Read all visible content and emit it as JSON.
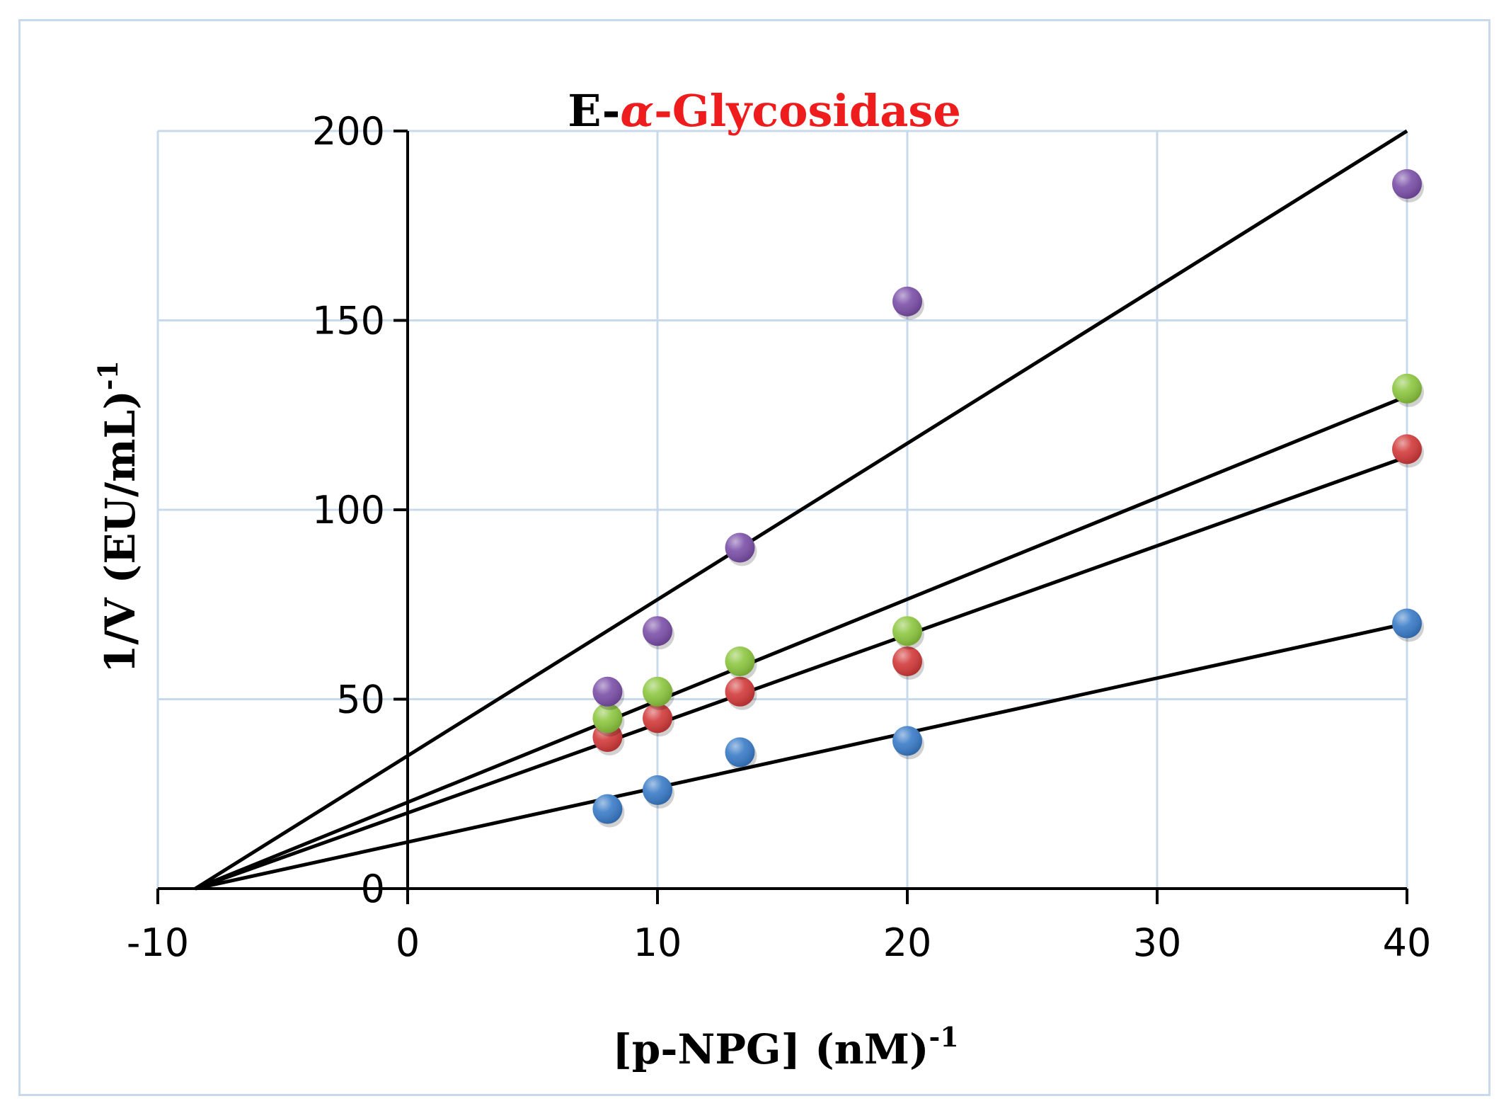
{
  "chart_data": {
    "type": "scatter",
    "title": {
      "prefix": "E-",
      "greek": "α",
      "suffix": "-Glycosidase",
      "prefix_color": "#000000",
      "highlight_color": "#ee1c1c"
    },
    "xlabel": {
      "main": "[p-NPG] (nM)",
      "sup": "-1"
    },
    "ylabel": {
      "main": "1/V (EU/mL)",
      "sup": "-1"
    },
    "xlim": [
      -10,
      40
    ],
    "ylim": [
      0,
      200
    ],
    "xticks": [
      -10,
      0,
      10,
      20,
      30,
      40
    ],
    "yticks": [
      0,
      50,
      100,
      150,
      200
    ],
    "grid": true,
    "x": [
      8,
      10,
      13.3,
      20,
      40
    ],
    "series": [
      {
        "name": "series-blue",
        "color": "#3a7cc8",
        "values": [
          21,
          26,
          36,
          39,
          70
        ]
      },
      {
        "name": "series-red",
        "color": "#d23a3a",
        "values": [
          40,
          45,
          52,
          60,
          116
        ]
      },
      {
        "name": "series-green",
        "color": "#8cc63f",
        "values": [
          45,
          52,
          60,
          68,
          132
        ]
      },
      {
        "name": "series-purple",
        "color": "#7b4fa8",
        "values": [
          52,
          68,
          90,
          155,
          186
        ]
      }
    ],
    "trendlines": [
      {
        "name": "trendline-blue",
        "from": [
          -8.5,
          0
        ],
        "to": [
          40,
          70
        ]
      },
      {
        "name": "trendline-red",
        "from": [
          -8.5,
          0
        ],
        "to": [
          40,
          114
        ]
      },
      {
        "name": "trendline-green",
        "from": [
          -8.5,
          0
        ],
        "to": [
          40,
          130
        ]
      },
      {
        "name": "trendline-purple",
        "from": [
          -8.5,
          0
        ],
        "to": [
          40,
          200
        ]
      }
    ]
  }
}
